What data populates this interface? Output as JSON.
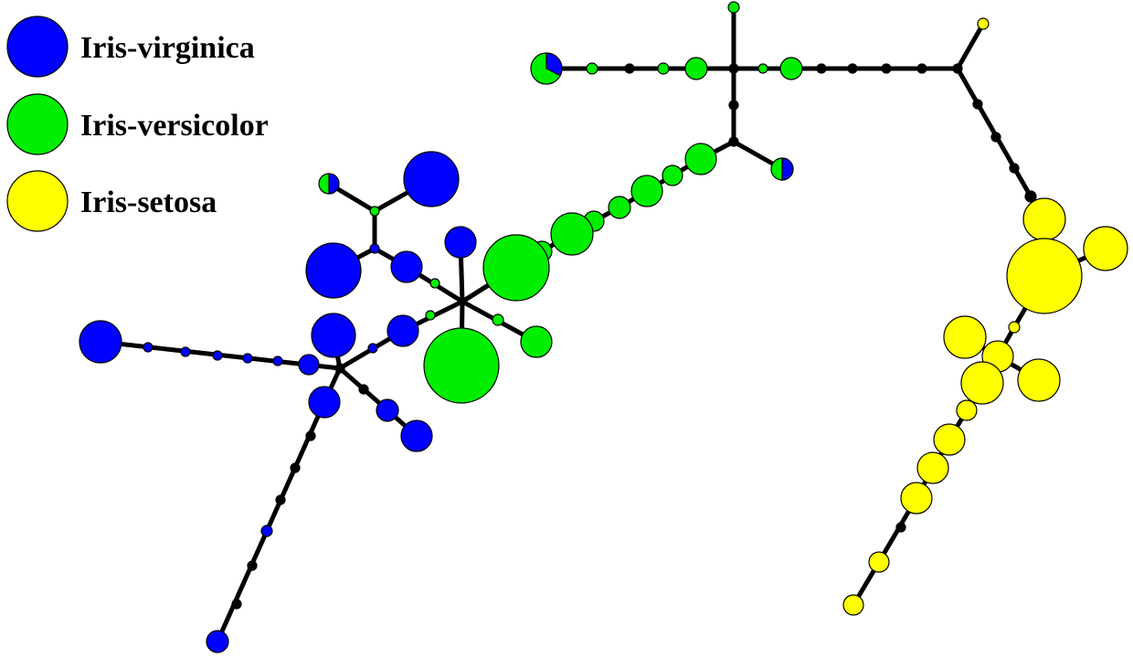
{
  "legend": {
    "items": [
      {
        "label": "Iris-virginica",
        "color": "#0000ff"
      },
      {
        "label": "Iris-versicolor",
        "color": "#00ee00"
      },
      {
        "label": "Iris-setosa",
        "color": "#ffff00"
      }
    ]
  },
  "colors": {
    "virginica": "#0000ff",
    "versicolor": "#00ee00",
    "setosa": "#ffff00",
    "junction": "#000000",
    "edge": "#000000"
  }
}
